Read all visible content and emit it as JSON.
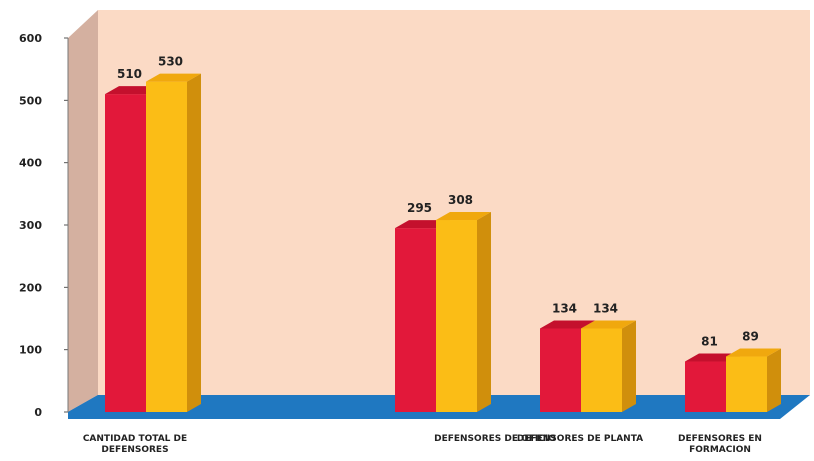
{
  "chart_data": {
    "type": "bar",
    "style": "3d-column",
    "categories": [
      [
        "CANTIDAD TOTAL DE",
        "DEFENSORES"
      ],
      [
        "DEFENSORES DE OFICIO"
      ],
      [
        "DEFENSORES DE PLANTA"
      ],
      [
        "DEFENSORES EN",
        "FORMACION"
      ]
    ],
    "series": [
      {
        "values": [
          510,
          295,
          134,
          81
        ],
        "color": "#e2183a",
        "side_color": "#a90f28",
        "top_color": "#c4102d"
      },
      {
        "values": [
          530,
          308,
          134,
          89
        ],
        "color": "#fbbd16",
        "side_color": "#d08f0c",
        "top_color": "#f0a80e"
      }
    ],
    "value_labels": [
      [
        "510",
        "530"
      ],
      [
        "295",
        "308"
      ],
      [
        "134",
        "134"
      ],
      [
        "81",
        "89"
      ]
    ],
    "y_ticks": [
      "0",
      "100",
      "200",
      "300",
      "400",
      "500",
      "600"
    ],
    "ylim": [
      0,
      600
    ],
    "wall_color": "#fbdac5",
    "side_wall_color": "#d4b0a0",
    "floor_color": "#1f78c1",
    "grid": false
  }
}
